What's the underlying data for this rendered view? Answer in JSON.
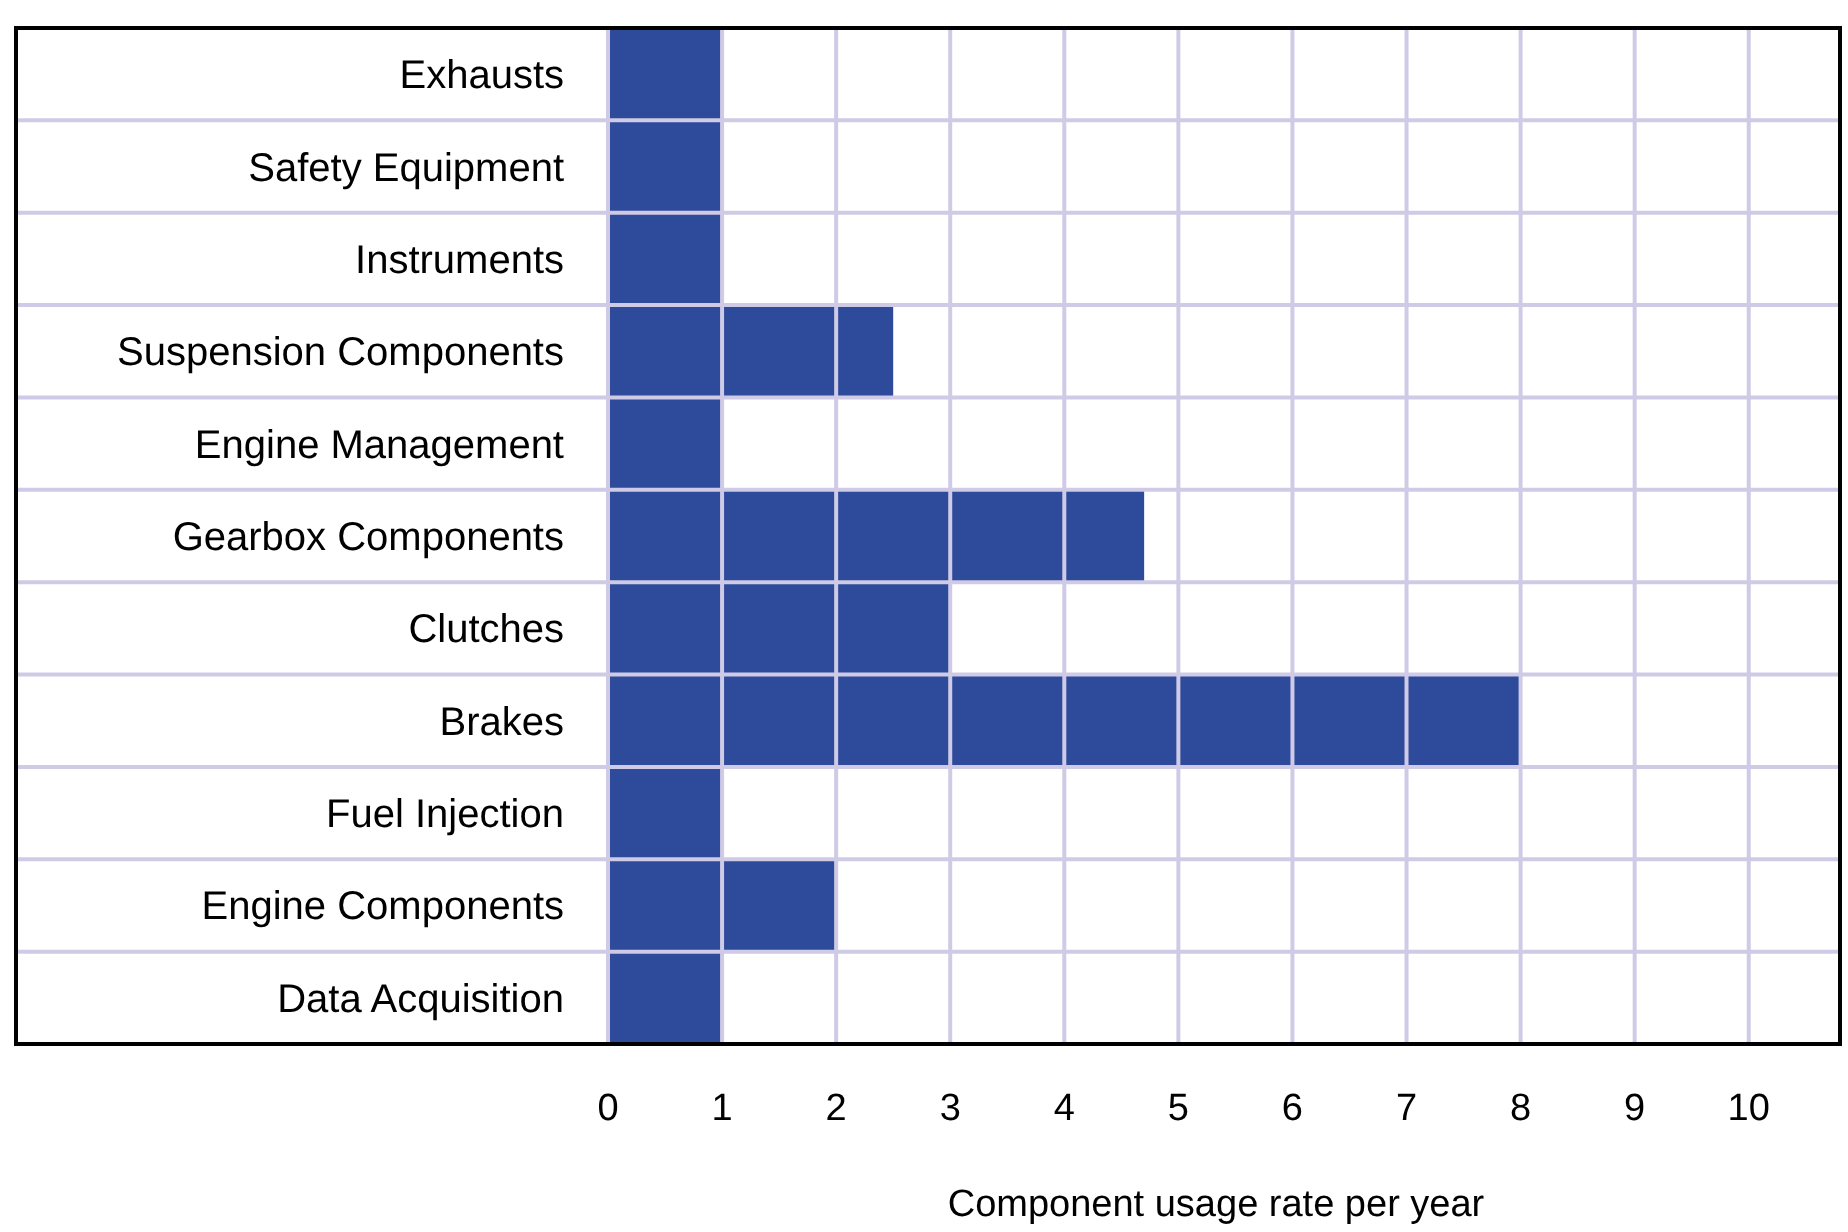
{
  "chart_data": {
    "type": "bar",
    "orientation": "horizontal",
    "xlabel": "Component usage rate per year",
    "categories": [
      "Exhausts",
      "Safety Equipment",
      "Instruments",
      "Suspension Components",
      "Engine Management",
      "Gearbox Components",
      "Clutches",
      "Brakes",
      "Fuel Injection",
      "Engine Components",
      "Data Acquisition"
    ],
    "values": [
      1,
      1,
      1,
      2.5,
      1,
      4.7,
      3,
      8,
      1,
      2,
      1
    ],
    "color": "#2e4a9a",
    "xlim": [
      0,
      10.8
    ],
    "xticks": [
      0,
      1,
      2,
      3,
      4,
      5,
      6,
      7,
      8,
      9,
      10
    ],
    "grid": true
  }
}
